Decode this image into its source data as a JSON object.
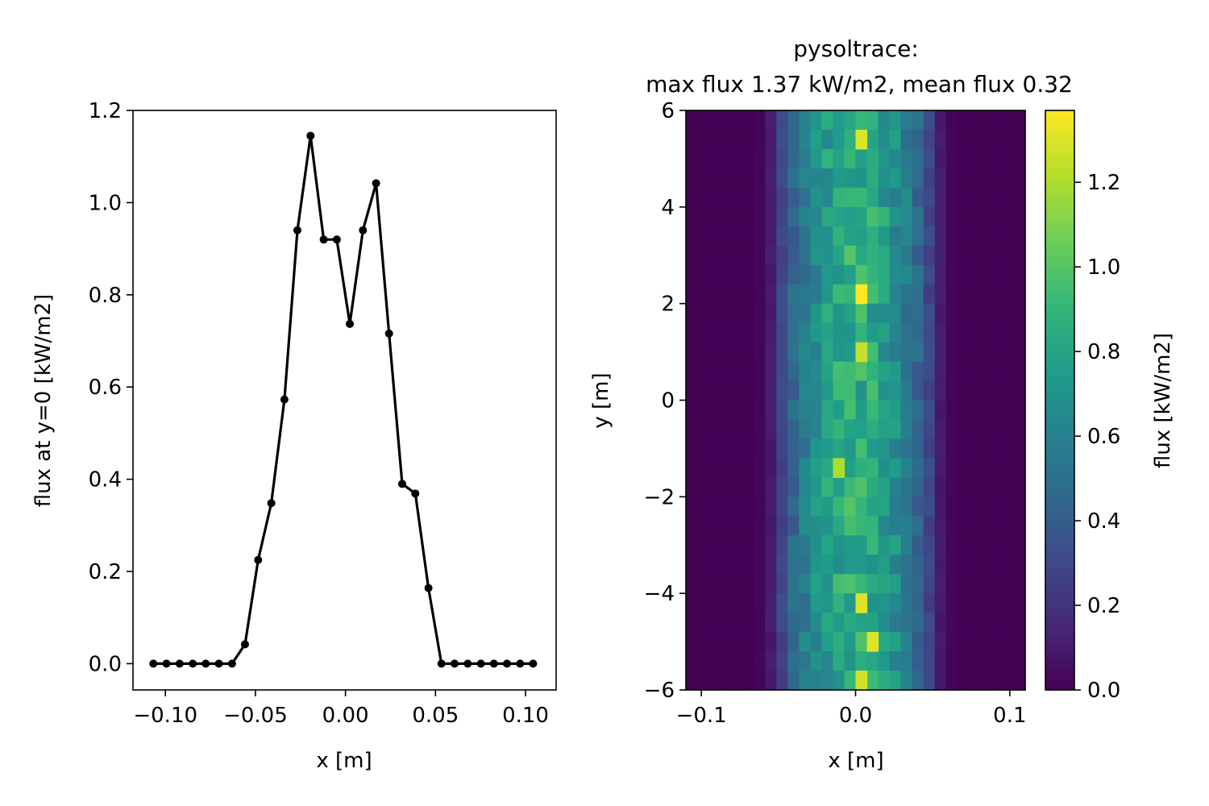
{
  "chart_data": [
    {
      "type": "line",
      "title": "",
      "xlabel": "x [m]",
      "ylabel": "flux at y=0 [kW/m2]",
      "xlim": [
        -0.118,
        0.117
      ],
      "ylim": [
        -0.057,
        1.2
      ],
      "xticks": [
        -0.1,
        -0.05,
        0.0,
        0.05,
        0.1
      ],
      "xtick_labels": [
        "−0.10",
        "−0.05",
        "0.00",
        "0.05",
        "0.10"
      ],
      "yticks": [
        0.0,
        0.2,
        0.4,
        0.6,
        0.8,
        1.0,
        1.2
      ],
      "ytick_labels": [
        "0.0",
        "0.2",
        "0.4",
        "0.6",
        "0.8",
        "1.0",
        "1.2"
      ],
      "line_color": "#000000",
      "marker": "circle",
      "x": [
        -0.1067,
        -0.0994,
        -0.0921,
        -0.0848,
        -0.0776,
        -0.0703,
        -0.063,
        -0.0558,
        -0.0485,
        -0.0412,
        -0.0339,
        -0.0267,
        -0.0194,
        -0.0121,
        -0.0048,
        0.0024,
        0.0097,
        0.017,
        0.0242,
        0.0315,
        0.0388,
        0.0461,
        0.0533,
        0.0606,
        0.0679,
        0.0752,
        0.0824,
        0.0897,
        0.097,
        0.1042
      ],
      "values": [
        0,
        0,
        0,
        0,
        0,
        0,
        0,
        0.042,
        0.225,
        0.348,
        0.573,
        0.94,
        1.145,
        0.92,
        0.92,
        0.737,
        0.94,
        1.042,
        0.716,
        0.39,
        0.369,
        0.164,
        0,
        0,
        0,
        0,
        0,
        0,
        0,
        0
      ]
    },
    {
      "type": "heatmap",
      "title": "pysoltrace:\nmax flux 1.37 kW/m2, mean flux 0.32",
      "title_lines": [
        "pysoltrace:",
        "max flux 1.37 kW/m2, mean flux 0.32"
      ],
      "xlabel": "x [m]",
      "ylabel": "y [m]",
      "xlim": [
        -0.11,
        0.11
      ],
      "ylim": [
        -6,
        6
      ],
      "xticks": [
        -0.1,
        0.0,
        0.1
      ],
      "xtick_labels": [
        "−0.1",
        "0.0",
        "0.1"
      ],
      "yticks": [
        -6,
        -4,
        -2,
        0,
        2,
        4,
        6
      ],
      "ytick_labels": [
        "−6",
        "−4",
        "−2",
        "0",
        "2",
        "4",
        "6"
      ],
      "colormap": "viridis",
      "colorbar": {
        "label": "flux [kW/m2]",
        "range": [
          0,
          1.37
        ],
        "ticks": [
          0.0,
          0.2,
          0.4,
          0.6,
          0.8,
          1.0,
          1.2
        ],
        "tick_labels": [
          "0.0",
          "0.2",
          "0.4",
          "0.6",
          "0.8",
          "1.0",
          "1.2"
        ]
      },
      "grid_shape": {
        "cols": 30,
        "rows": 30
      },
      "column_profile": [
        0,
        0,
        0,
        0,
        0,
        0,
        0.02,
        0.12,
        0.33,
        0.52,
        0.66,
        0.78,
        0.88,
        0.94,
        0.98,
        0.98,
        0.94,
        0.88,
        0.78,
        0.66,
        0.52,
        0.33,
        0.12,
        0.02,
        0,
        0,
        0,
        0,
        0,
        0
      ],
      "peak_level": 0.87,
      "hotspots": [
        {
          "x": 0.0,
          "y": 5.4,
          "value": 1.3
        },
        {
          "x": 0.005,
          "y": 2.2,
          "value": 1.37
        },
        {
          "x": 0.005,
          "y": 1.0,
          "value": 1.25
        },
        {
          "x": -0.008,
          "y": -1.2,
          "value": 1.2
        },
        {
          "x": 0.0,
          "y": -4.2,
          "value": 1.3
        },
        {
          "x": 0.012,
          "y": -5.2,
          "value": 1.3
        },
        {
          "x": 0.0,
          "y": -5.8,
          "value": 1.28
        }
      ]
    }
  ]
}
